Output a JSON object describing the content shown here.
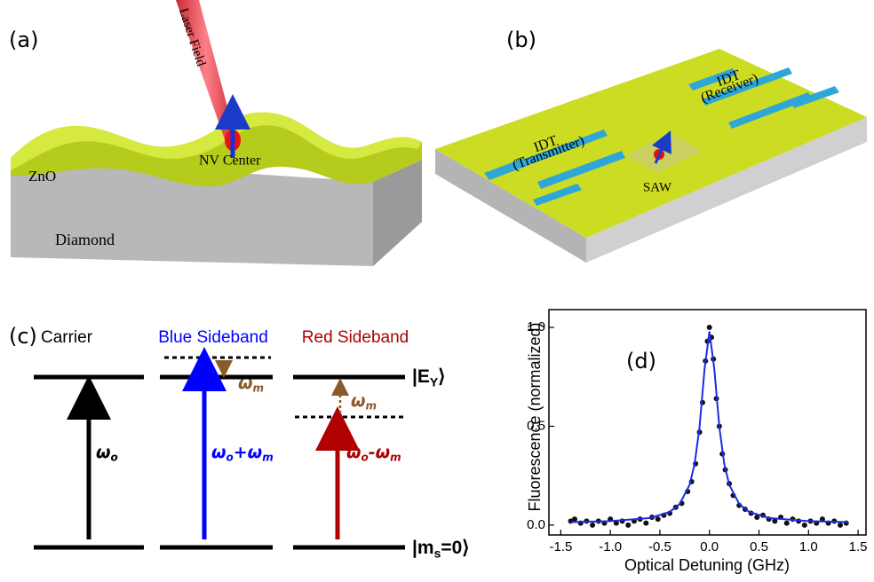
{
  "panel_a": {
    "label": "(a)",
    "laser": "Laser Field",
    "layer": "ZnO",
    "defect": "NV Center",
    "substrate": "Diamond"
  },
  "panel_b": {
    "label": "(b)",
    "transmitter": [
      "IDT",
      "(Transmitter)"
    ],
    "receiver": [
      "IDT",
      "(Receiver)"
    ],
    "wave": "SAW"
  },
  "panel_c": {
    "label": "(c)",
    "columns": [
      "Carrier",
      "Blue Sideband",
      "Red Sideband"
    ],
    "transitions": [
      [
        {
          "text": "ω"
        },
        {
          "sub": "o"
        }
      ],
      [
        {
          "text": "ω"
        },
        {
          "sub": "o"
        },
        {
          "text": "+ω"
        },
        {
          "sub": "m"
        }
      ],
      [
        {
          "text": "ω"
        },
        {
          "sub": "o"
        },
        {
          "text": "-ω"
        },
        {
          "sub": "m"
        }
      ]
    ],
    "shifts": [
      [
        {
          "text": "ω"
        },
        {
          "sub": "m"
        }
      ],
      [
        {
          "text": "ω"
        },
        {
          "sub": "m"
        }
      ]
    ],
    "states": [
      [
        {
          "text": "|E"
        },
        {
          "sub": "Y"
        },
        {
          "text": "⟩"
        }
      ],
      [
        {
          "text": "|m"
        },
        {
          "sub": "s"
        },
        {
          "text": "=0⟩"
        }
      ]
    ]
  },
  "chart_data": {
    "type": "scatter",
    "label": "(d)",
    "x_label": "Optical Detuning (GHz)",
    "y_label": "Fluorescence (normalized)",
    "xlim": [
      -1.62,
      1.58
    ],
    "ylim": [
      -0.05,
      1.09
    ],
    "xticks": [
      -1.5,
      {
        "value": -1,
        "label": "-1.0"
      },
      -0.5,
      {
        "value": 0,
        "label": "0.0"
      },
      0.5,
      {
        "value": 1,
        "label": "1.0"
      },
      1.5
    ],
    "yticks": [
      {
        "value": 0,
        "label": "0.0"
      },
      0.5,
      {
        "value": 1,
        "label": "1.0"
      }
    ],
    "series": [
      {
        "type": "scatter",
        "color": "#111111",
        "x": [
          -1.4,
          -1.36,
          -1.3,
          -1.24,
          -1.18,
          -1.12,
          -1.06,
          -1.0,
          -0.94,
          -0.88,
          -0.82,
          -0.76,
          -0.7,
          -0.64,
          -0.58,
          -0.52,
          -0.46,
          -0.4,
          -0.34,
          -0.28,
          -0.22,
          -0.18,
          -0.14,
          -0.1,
          -0.07,
          -0.04,
          -0.02,
          0.0,
          0.02,
          0.04,
          0.07,
          0.1,
          0.13,
          0.16,
          0.2,
          0.24,
          0.3,
          0.36,
          0.42,
          0.48,
          0.54,
          0.6,
          0.66,
          0.72,
          0.78,
          0.84,
          0.9,
          0.96,
          1.02,
          1.08,
          1.14,
          1.2,
          1.26,
          1.32,
          1.38
        ],
        "values": [
          0.02,
          0.03,
          0.01,
          0.02,
          0.0,
          0.02,
          0.01,
          0.03,
          0.01,
          0.02,
          0.0,
          0.02,
          0.03,
          0.01,
          0.04,
          0.03,
          0.05,
          0.06,
          0.09,
          0.11,
          0.17,
          0.22,
          0.31,
          0.47,
          0.62,
          0.83,
          0.93,
          1.0,
          0.95,
          0.84,
          0.64,
          0.5,
          0.36,
          0.28,
          0.21,
          0.15,
          0.1,
          0.08,
          0.06,
          0.04,
          0.05,
          0.03,
          0.02,
          0.04,
          0.01,
          0.03,
          0.02,
          0.0,
          0.02,
          0.01,
          0.03,
          0.01,
          0.02,
          0.0,
          0.01
        ]
      },
      {
        "type": "line",
        "color": "#1a2ee0",
        "x": [
          -1.4,
          -1.0,
          -0.6,
          -0.4,
          -0.3,
          -0.2,
          -0.15,
          -0.1,
          -0.05,
          0,
          0.05,
          0.1,
          0.15,
          0.2,
          0.3,
          0.4,
          0.6,
          1.0,
          1.4
        ],
        "values": [
          0.015,
          0.02,
          0.036,
          0.067,
          0.107,
          0.204,
          0.308,
          0.495,
          0.786,
          0.98,
          0.786,
          0.495,
          0.308,
          0.204,
          0.107,
          0.067,
          0.036,
          0.02,
          0.015
        ]
      }
    ]
  }
}
